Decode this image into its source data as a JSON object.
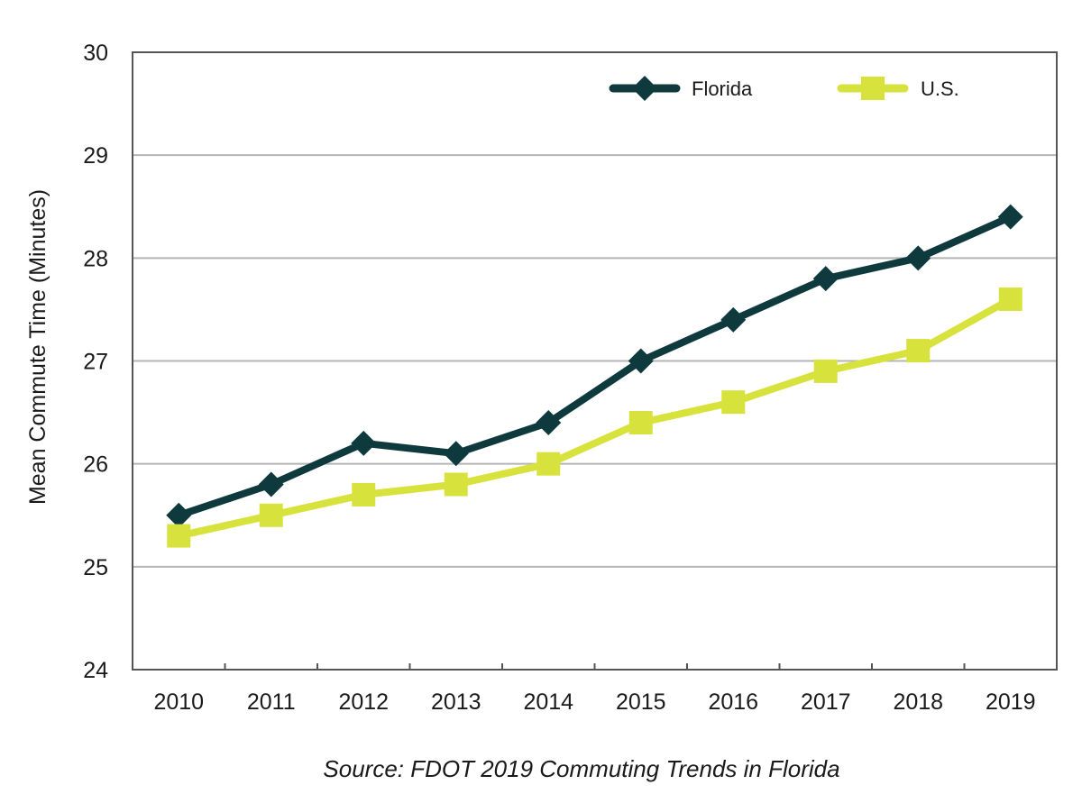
{
  "chart_data": {
    "type": "line",
    "categories": [
      "2010",
      "2011",
      "2012",
      "2013",
      "2014",
      "2015",
      "2016",
      "2017",
      "2018",
      "2019"
    ],
    "series": [
      {
        "name": "Florida",
        "values": [
          25.5,
          25.8,
          26.2,
          26.1,
          26.4,
          27.0,
          27.4,
          27.8,
          28.0,
          28.4
        ],
        "color": "#0e3a3e",
        "marker": "diamond"
      },
      {
        "name": "U.S.",
        "values": [
          25.3,
          25.5,
          25.7,
          25.8,
          26.0,
          26.4,
          26.6,
          26.9,
          27.1,
          27.6
        ],
        "color": "#d7e33c",
        "marker": "square"
      }
    ],
    "ylabel": "Mean Commute Time (Minutes)",
    "xlabel": "",
    "ylim": [
      24,
      30
    ],
    "yticks": [
      "24",
      "25",
      "26",
      "27",
      "28",
      "29",
      "30"
    ],
    "grid": true,
    "legend_position": "top-right"
  },
  "source": "Source: FDOT 2019 Commuting Trends in Florida"
}
